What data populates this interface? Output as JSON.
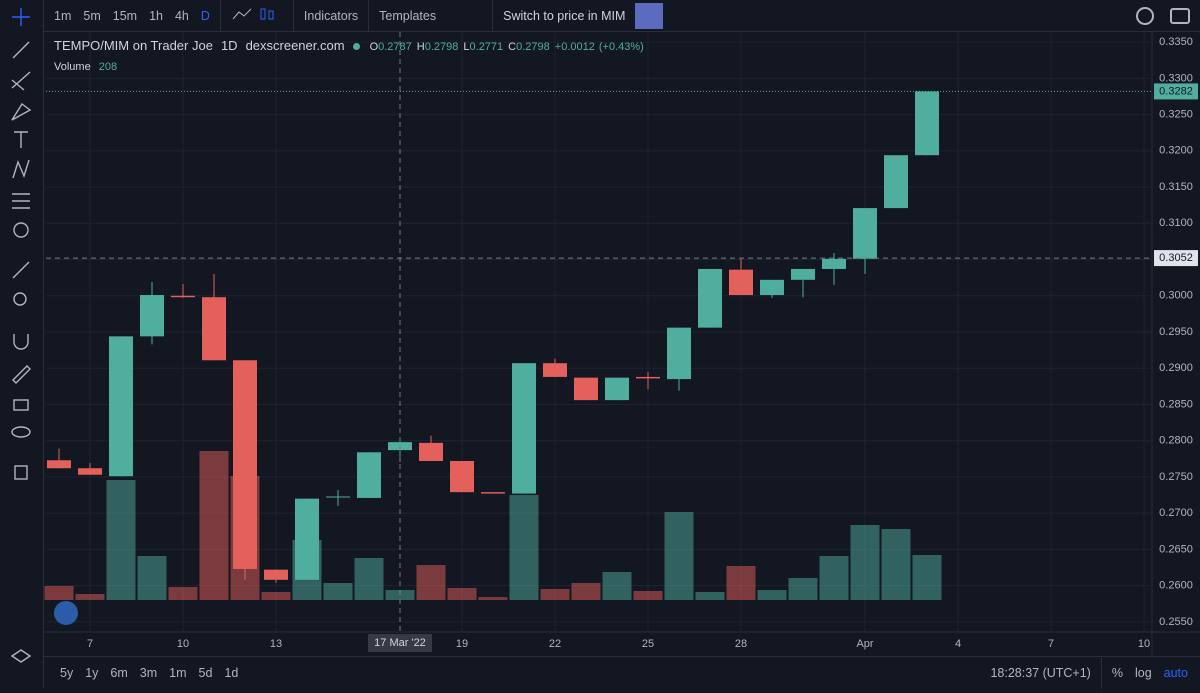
{
  "toolbar": {
    "intervals": [
      "1m",
      "5m",
      "15m",
      "1h",
      "4h",
      "D"
    ],
    "indicators": "Indicators",
    "templates": "Templates",
    "switch": "Switch to price in MIM"
  },
  "chart_data": {
    "type": "candlestick",
    "title": "TEMPO/MIM on Trader Joe",
    "interval": "1D",
    "source": "dexscreener.com",
    "ohlc_labels": [
      "O",
      "H",
      "L",
      "C"
    ],
    "change": "+0.0012",
    "change_pct": "(+0.43%)",
    "volume_label": "Volume",
    "categories": [
      null,
      "7",
      null,
      null,
      "10",
      null,
      null,
      "13",
      null,
      null,
      null,
      null,
      null,
      "19",
      null,
      null,
      "22",
      null,
      null,
      "25",
      null,
      null,
      "28",
      null,
      null,
      null,
      "Apr",
      null,
      null,
      "4",
      null,
      null,
      "7",
      null,
      null,
      "10"
    ],
    "open": [
      0.2773,
      0.2762,
      0.2751,
      0.2944,
      0.3,
      0.2998,
      0.2911,
      0.2622,
      0.2608,
      0.2722,
      0.2721,
      0.2787,
      0.2797,
      0.2772,
      0.2729,
      0.2727,
      0.2907,
      0.2887,
      0.2856,
      0.2888,
      0.2885,
      0.2956,
      0.3036,
      0.3001,
      0.3022,
      0.3037,
      0.3051,
      0.3121,
      0.3194,
      null,
      null,
      null,
      null,
      null,
      null,
      null
    ],
    "high": [
      0.2789,
      0.2769,
      0.2944,
      0.3019,
      0.3016,
      0.303,
      0.2911,
      0.2622,
      0.272,
      0.2732,
      0.2784,
      0.2798,
      0.2807,
      0.2772,
      0.2729,
      0.2907,
      0.2913,
      0.2887,
      0.2887,
      0.2895,
      0.2956,
      0.3037,
      0.3051,
      0.3022,
      0.3037,
      0.3059,
      0.3121,
      0.3194,
      0.3282,
      null,
      null,
      null,
      null,
      null,
      null,
      null
    ],
    "low": [
      0.2762,
      0.2753,
      0.2751,
      0.2933,
      0.2997,
      0.2911,
      0.2608,
      0.2604,
      0.2608,
      0.271,
      0.2721,
      0.2771,
      0.2772,
      0.2729,
      0.2727,
      0.2727,
      0.2888,
      0.2856,
      0.2856,
      0.2871,
      0.2869,
      0.2956,
      0.3001,
      0.2997,
      0.2998,
      0.3015,
      0.303,
      0.3121,
      0.3194,
      null,
      null,
      null,
      null,
      null,
      null,
      null
    ],
    "close": [
      0.2762,
      0.2753,
      0.2944,
      0.3001,
      0.2998,
      0.2911,
      0.2623,
      0.2608,
      0.272,
      0.2723,
      0.2784,
      0.2798,
      0.2772,
      0.2729,
      0.2727,
      0.2907,
      0.2888,
      0.2856,
      0.2887,
      0.2886,
      0.2956,
      0.3037,
      0.3001,
      0.3022,
      0.3037,
      0.3051,
      0.3121,
      0.3194,
      0.3282,
      null,
      null,
      null,
      null,
      null,
      null,
      null
    ],
    "volume": [
      291,
      125,
      2496,
      915,
      270,
      3099,
      2579,
      166,
      1248,
      354,
      874,
      208,
      728,
      250,
      62,
      2184,
      229,
      354,
      582,
      187,
      1830,
      166,
      707,
      208,
      458,
      915,
      1560,
      1477,
      936,
      null,
      null,
      null,
      null,
      null,
      null,
      null
    ],
    "up_color": "#4fae9e",
    "down_color": "#e4605a",
    "ylim": [
      0.2536,
      0.3364
    ],
    "yticks": [
      {
        "value": 0.255,
        "label": "0.2550"
      },
      {
        "value": 0.26,
        "label": "0.2600"
      },
      {
        "value": 0.265,
        "label": "0.2650"
      },
      {
        "value": 0.27,
        "label": "0.2700"
      },
      {
        "value": 0.275,
        "label": "0.2750"
      },
      {
        "value": 0.28,
        "label": "0.2800"
      },
      {
        "value": 0.285,
        "label": "0.2850"
      },
      {
        "value": 0.29,
        "label": "0.2900"
      },
      {
        "value": 0.295,
        "label": "0.2950"
      },
      {
        "value": 0.3,
        "label": "0.3000"
      },
      {
        "value": 0.305,
        "label": "0.3050"
      },
      {
        "value": 0.31,
        "label": "0.3100"
      },
      {
        "value": 0.315,
        "label": "0.3150"
      },
      {
        "value": 0.32,
        "label": "0.3200"
      },
      {
        "value": 0.325,
        "label": "0.3250"
      },
      {
        "value": 0.33,
        "label": "0.3300"
      },
      {
        "value": 0.335,
        "label": "0.3350"
      }
    ],
    "grid": true,
    "crosshair": {
      "index": 11,
      "price": 0.3052,
      "date_label": "17 Mar '22"
    }
  },
  "bottom_bar": {
    "ranges": [
      "5y",
      "1y",
      "6m",
      "3m",
      "1m",
      "5d",
      "1d"
    ],
    "time": "18:28:37 (UTC+1)",
    "percent": "%",
    "log": "log",
    "auto": "auto"
  }
}
